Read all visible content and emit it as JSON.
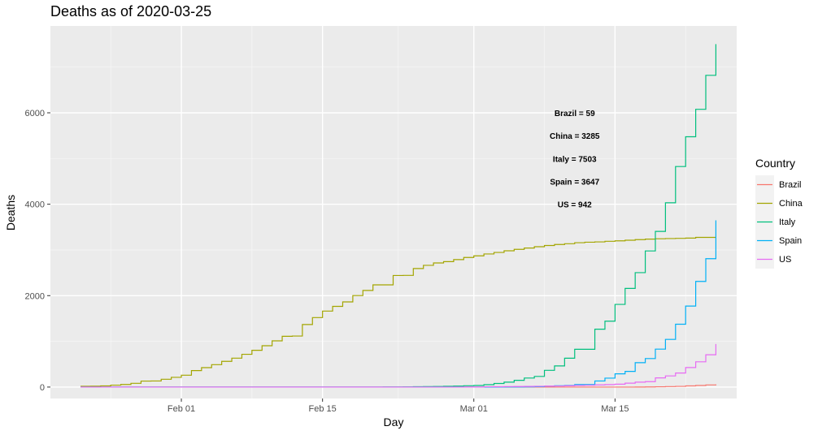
{
  "chart_data": {
    "type": "line",
    "title": "Deaths as of 2020-03-25",
    "xlabel": "Day",
    "ylabel": "Deaths",
    "x_axis": {
      "type": "date",
      "min": "2020-01-22",
      "max": "2020-03-24",
      "ticks": [
        {
          "date": "2020-02-01",
          "label": "Feb 01"
        },
        {
          "date": "2020-02-15",
          "label": "Feb 15"
        },
        {
          "date": "2020-03-01",
          "label": "Mar 01"
        },
        {
          "date": "2020-03-15",
          "label": "Mar 15"
        }
      ]
    },
    "y_axis": {
      "ylim": [
        -250,
        7900
      ],
      "ticks": [
        0,
        2000,
        4000,
        6000
      ]
    },
    "grid": true,
    "step": true,
    "legend": {
      "title": "Country",
      "position": "right"
    },
    "series": [
      {
        "name": "Brazil",
        "color": "#F8766D",
        "points": [
          [
            "2020-01-22",
            0
          ],
          [
            "2020-03-16",
            0
          ],
          [
            "2020-03-17",
            1
          ],
          [
            "2020-03-18",
            3
          ],
          [
            "2020-03-19",
            6
          ],
          [
            "2020-03-20",
            11
          ],
          [
            "2020-03-21",
            15
          ],
          [
            "2020-03-22",
            25
          ],
          [
            "2020-03-23",
            34
          ],
          [
            "2020-03-24",
            46
          ],
          [
            "2020-03-25",
            59
          ]
        ]
      },
      {
        "name": "China",
        "color": "#A3A500",
        "points": [
          [
            "2020-01-22",
            17
          ],
          [
            "2020-01-23",
            18
          ],
          [
            "2020-01-24",
            26
          ],
          [
            "2020-01-25",
            42
          ],
          [
            "2020-01-26",
            56
          ],
          [
            "2020-01-27",
            82
          ],
          [
            "2020-01-28",
            131
          ],
          [
            "2020-01-29",
            133
          ],
          [
            "2020-01-30",
            171
          ],
          [
            "2020-01-31",
            213
          ],
          [
            "2020-02-01",
            259
          ],
          [
            "2020-02-02",
            361
          ],
          [
            "2020-02-03",
            425
          ],
          [
            "2020-02-04",
            490
          ],
          [
            "2020-02-05",
            562
          ],
          [
            "2020-02-06",
            632
          ],
          [
            "2020-02-07",
            717
          ],
          [
            "2020-02-08",
            804
          ],
          [
            "2020-02-09",
            904
          ],
          [
            "2020-02-10",
            1011
          ],
          [
            "2020-02-11",
            1111
          ],
          [
            "2020-02-12",
            1116
          ],
          [
            "2020-02-13",
            1368
          ],
          [
            "2020-02-14",
            1520
          ],
          [
            "2020-02-15",
            1662
          ],
          [
            "2020-02-16",
            1765
          ],
          [
            "2020-02-17",
            1863
          ],
          [
            "2020-02-18",
            2002
          ],
          [
            "2020-02-19",
            2114
          ],
          [
            "2020-02-20",
            2236
          ],
          [
            "2020-02-21",
            2236
          ],
          [
            "2020-02-22",
            2441
          ],
          [
            "2020-02-23",
            2443
          ],
          [
            "2020-02-24",
            2593
          ],
          [
            "2020-02-25",
            2663
          ],
          [
            "2020-02-26",
            2715
          ],
          [
            "2020-02-27",
            2744
          ],
          [
            "2020-02-28",
            2788
          ],
          [
            "2020-02-29",
            2835
          ],
          [
            "2020-03-01",
            2870
          ],
          [
            "2020-03-02",
            2912
          ],
          [
            "2020-03-03",
            2945
          ],
          [
            "2020-03-04",
            2981
          ],
          [
            "2020-03-05",
            3013
          ],
          [
            "2020-03-06",
            3042
          ],
          [
            "2020-03-07",
            3070
          ],
          [
            "2020-03-08",
            3097
          ],
          [
            "2020-03-09",
            3119
          ],
          [
            "2020-03-10",
            3136
          ],
          [
            "2020-03-11",
            3158
          ],
          [
            "2020-03-12",
            3169
          ],
          [
            "2020-03-13",
            3176
          ],
          [
            "2020-03-14",
            3189
          ],
          [
            "2020-03-15",
            3199
          ],
          [
            "2020-03-16",
            3213
          ],
          [
            "2020-03-17",
            3226
          ],
          [
            "2020-03-18",
            3237
          ],
          [
            "2020-03-19",
            3245
          ],
          [
            "2020-03-20",
            3249
          ],
          [
            "2020-03-21",
            3253
          ],
          [
            "2020-03-22",
            3259
          ],
          [
            "2020-03-23",
            3274
          ],
          [
            "2020-03-24",
            3274
          ],
          [
            "2020-03-25",
            3285
          ]
        ]
      },
      {
        "name": "Italy",
        "color": "#00BF7D",
        "points": [
          [
            "2020-01-22",
            0
          ],
          [
            "2020-02-21",
            1
          ],
          [
            "2020-02-22",
            2
          ],
          [
            "2020-02-23",
            3
          ],
          [
            "2020-02-24",
            7
          ],
          [
            "2020-02-25",
            10
          ],
          [
            "2020-02-26",
            12
          ],
          [
            "2020-02-27",
            17
          ],
          [
            "2020-02-28",
            21
          ],
          [
            "2020-02-29",
            29
          ],
          [
            "2020-03-01",
            34
          ],
          [
            "2020-03-02",
            52
          ],
          [
            "2020-03-03",
            79
          ],
          [
            "2020-03-04",
            107
          ],
          [
            "2020-03-05",
            148
          ],
          [
            "2020-03-06",
            197
          ],
          [
            "2020-03-07",
            233
          ],
          [
            "2020-03-08",
            366
          ],
          [
            "2020-03-09",
            463
          ],
          [
            "2020-03-10",
            631
          ],
          [
            "2020-03-11",
            827
          ],
          [
            "2020-03-12",
            827
          ],
          [
            "2020-03-13",
            1266
          ],
          [
            "2020-03-14",
            1441
          ],
          [
            "2020-03-15",
            1809
          ],
          [
            "2020-03-16",
            2158
          ],
          [
            "2020-03-17",
            2503
          ],
          [
            "2020-03-18",
            2978
          ],
          [
            "2020-03-19",
            3405
          ],
          [
            "2020-03-20",
            4032
          ],
          [
            "2020-03-21",
            4825
          ],
          [
            "2020-03-22",
            5476
          ],
          [
            "2020-03-23",
            6077
          ],
          [
            "2020-03-24",
            6820
          ],
          [
            "2020-03-25",
            7503
          ]
        ]
      },
      {
        "name": "Spain",
        "color": "#00B0F6",
        "points": [
          [
            "2020-01-22",
            0
          ],
          [
            "2020-03-03",
            1
          ],
          [
            "2020-03-04",
            2
          ],
          [
            "2020-03-05",
            3
          ],
          [
            "2020-03-06",
            5
          ],
          [
            "2020-03-07",
            10
          ],
          [
            "2020-03-08",
            17
          ],
          [
            "2020-03-09",
            28
          ],
          [
            "2020-03-10",
            35
          ],
          [
            "2020-03-11",
            54
          ],
          [
            "2020-03-12",
            55
          ],
          [
            "2020-03-13",
            133
          ],
          [
            "2020-03-14",
            195
          ],
          [
            "2020-03-15",
            289
          ],
          [
            "2020-03-16",
            342
          ],
          [
            "2020-03-17",
            533
          ],
          [
            "2020-03-18",
            623
          ],
          [
            "2020-03-19",
            830
          ],
          [
            "2020-03-20",
            1043
          ],
          [
            "2020-03-21",
            1375
          ],
          [
            "2020-03-22",
            1772
          ],
          [
            "2020-03-23",
            2311
          ],
          [
            "2020-03-24",
            2808
          ],
          [
            "2020-03-25",
            3647
          ]
        ]
      },
      {
        "name": "US",
        "color": "#E76BF3",
        "points": [
          [
            "2020-01-22",
            0
          ],
          [
            "2020-02-29",
            1
          ],
          [
            "2020-03-01",
            1
          ],
          [
            "2020-03-02",
            6
          ],
          [
            "2020-03-03",
            7
          ],
          [
            "2020-03-04",
            11
          ],
          [
            "2020-03-05",
            12
          ],
          [
            "2020-03-06",
            14
          ],
          [
            "2020-03-07",
            17
          ],
          [
            "2020-03-08",
            21
          ],
          [
            "2020-03-09",
            22
          ],
          [
            "2020-03-10",
            28
          ],
          [
            "2020-03-11",
            36
          ],
          [
            "2020-03-12",
            40
          ],
          [
            "2020-03-13",
            47
          ],
          [
            "2020-03-14",
            54
          ],
          [
            "2020-03-15",
            63
          ],
          [
            "2020-03-16",
            85
          ],
          [
            "2020-03-17",
            108
          ],
          [
            "2020-03-18",
            118
          ],
          [
            "2020-03-19",
            200
          ],
          [
            "2020-03-20",
            244
          ],
          [
            "2020-03-21",
            307
          ],
          [
            "2020-03-22",
            427
          ],
          [
            "2020-03-23",
            552
          ],
          [
            "2020-03-24",
            706
          ],
          [
            "2020-03-25",
            942
          ]
        ]
      }
    ],
    "annotations": [
      {
        "text": "Brazil = 59",
        "x": "2020-03-11",
        "y": 6000
      },
      {
        "text": "China = 3285",
        "x": "2020-03-11",
        "y": 5500
      },
      {
        "text": "Italy = 7503",
        "x": "2020-03-11",
        "y": 5000
      },
      {
        "text": "Spain = 3647",
        "x": "2020-03-11",
        "y": 4500
      },
      {
        "text": "US = 942",
        "x": "2020-03-11",
        "y": 4000
      }
    ]
  }
}
